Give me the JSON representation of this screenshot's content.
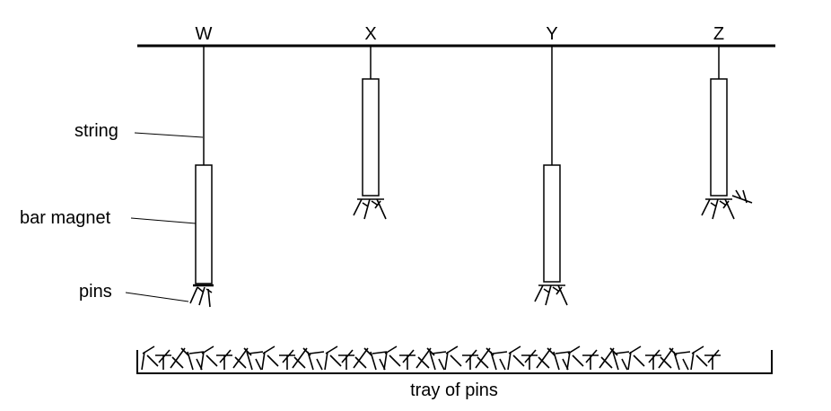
{
  "magnets": [
    {
      "letter": "W"
    },
    {
      "letter": "X"
    },
    {
      "letter": "Y"
    },
    {
      "letter": "Z"
    }
  ],
  "labels": {
    "string": "string",
    "bar_magnet": "bar magnet",
    "pins": "pins",
    "tray": "tray of pins"
  },
  "colors": {
    "line": "#000000",
    "background": "#ffffff"
  }
}
